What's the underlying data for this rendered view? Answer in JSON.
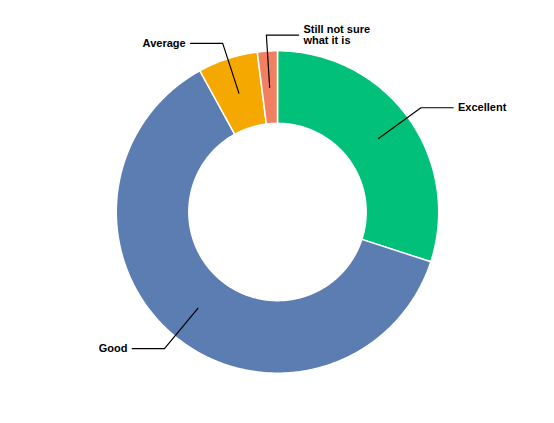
{
  "chart_data": {
    "type": "pie",
    "categories": [
      "Excellent",
      "Good",
      "Average",
      "Still not sure\nwhat it is"
    ],
    "values": [
      30,
      62,
      6,
      2
    ],
    "colors": [
      "#00C07A",
      "#5B7DB1",
      "#F5A800",
      "#F08060"
    ]
  }
}
